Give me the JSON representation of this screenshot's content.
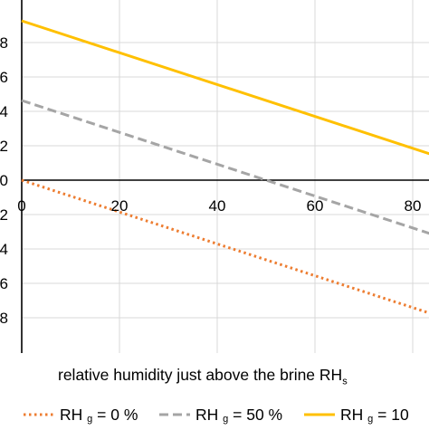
{
  "chart_data": {
    "type": "line",
    "xlabel_main": "relative humidity just above the brine RH",
    "xlabel_sub": "s",
    "x_ticks": [
      0,
      20,
      40,
      60,
      80
    ],
    "y_tick_fragments": [
      "8",
      "6",
      "4",
      "2",
      "0",
      "2",
      "4",
      "6",
      "8"
    ],
    "xlim": [
      0,
      100
    ],
    "grid": true,
    "legend_position": "bottom",
    "series": [
      {
        "name_prefix": "RH",
        "name_sub": "g",
        "name_suffix": " = 0 %",
        "style": "dotted",
        "color": "#ED7D31",
        "x": [
          0,
          100
        ],
        "y": [
          0,
          -0.88
        ]
      },
      {
        "name_prefix": "RH",
        "name_sub": "g",
        "name_suffix": " = 50 %",
        "style": "dashed",
        "color": "#A5A5A5",
        "x": [
          0,
          100
        ],
        "y": [
          0.44,
          -0.44
        ]
      },
      {
        "name_prefix": "RH",
        "name_sub": "g",
        "name_suffix": " = 10",
        "style": "solid",
        "color": "#FFC000",
        "x": [
          0,
          100
        ],
        "y": [
          0.88,
          0
        ]
      }
    ]
  }
}
